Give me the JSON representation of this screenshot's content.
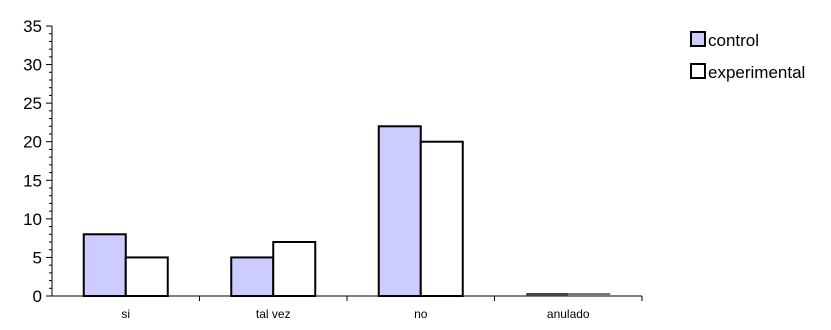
{
  "chart_data": {
    "type": "bar",
    "title": "",
    "xlabel": "",
    "ylabel": "",
    "categories": [
      "si",
      "tal vez",
      "no",
      "anulado"
    ],
    "series": [
      {
        "name": "control",
        "values": [
          8,
          5,
          22,
          0
        ],
        "color": "#ccccff"
      },
      {
        "name": "experimental",
        "values": [
          5,
          7,
          20,
          0
        ],
        "color": "#ffffff"
      }
    ],
    "ylim": [
      0,
      35
    ],
    "yticks": [
      0,
      5,
      10,
      15,
      20,
      25,
      30,
      35
    ],
    "yticks_labels": [
      "0",
      "5",
      "10",
      "15",
      "20",
      "25",
      "30",
      "35"
    ],
    "grid": false,
    "legend": "top-right"
  }
}
